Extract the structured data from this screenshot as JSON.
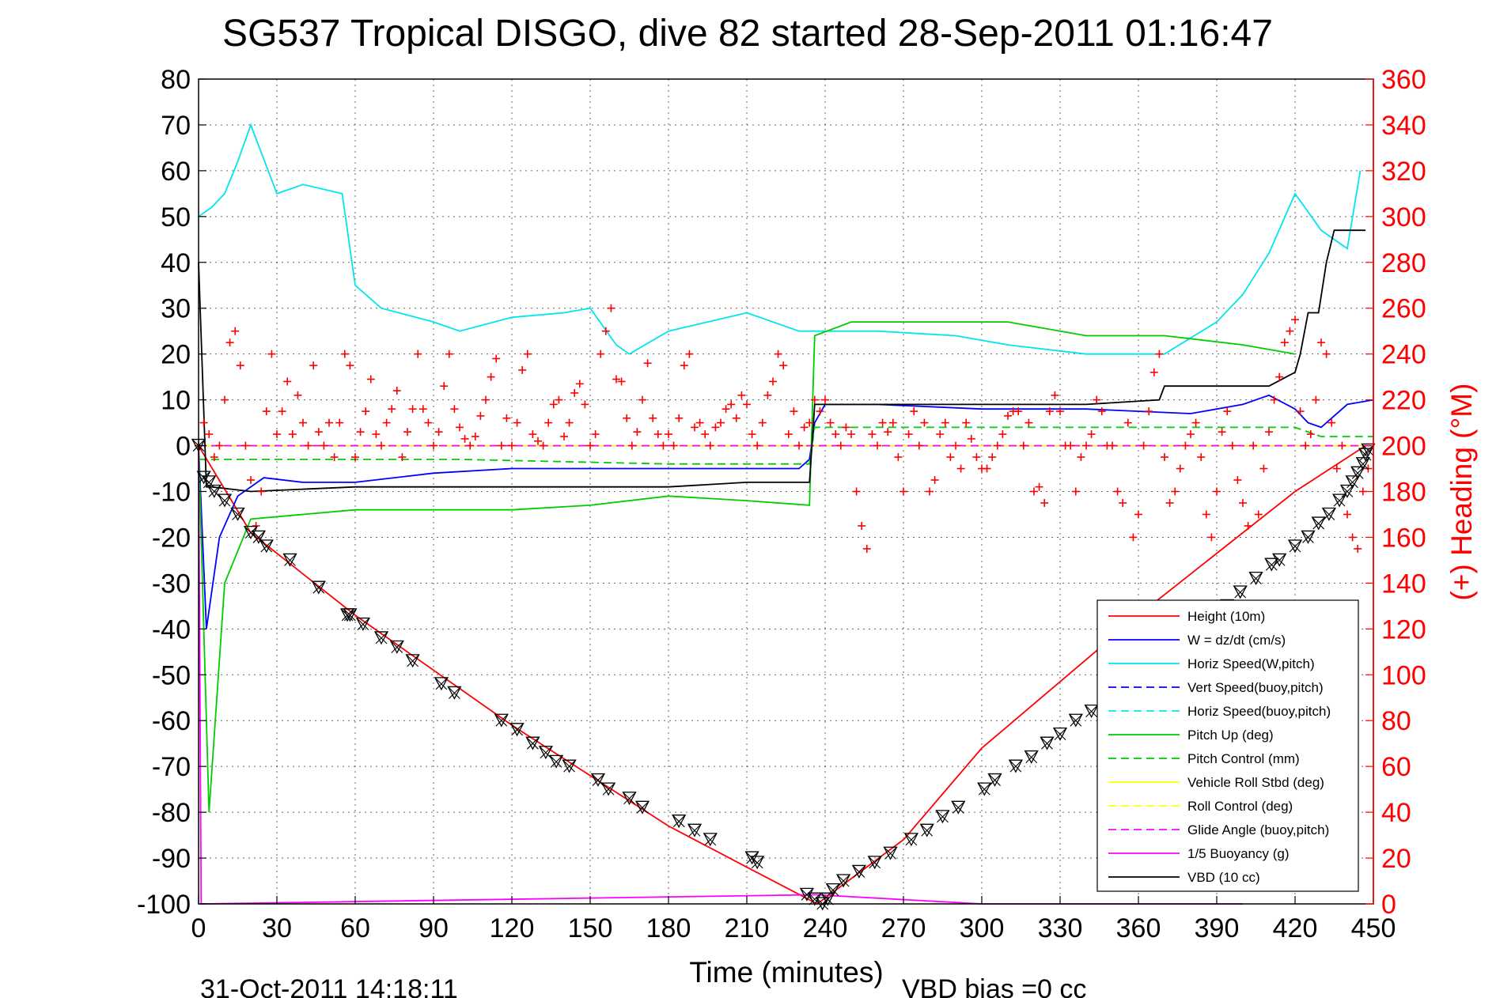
{
  "chart_data": {
    "type": "line",
    "title": "SG537 Tropical DISGO, dive 82 started 28-Sep-2011 01:16:47",
    "xlabel": "Time (minutes)",
    "ylabel_right": "(+) Heading (°M)",
    "xlim": [
      0,
      450
    ],
    "ylim": [
      -100,
      80
    ],
    "ylim_right": [
      0,
      360
    ],
    "x_ticks": [
      "0",
      "30",
      "60",
      "90",
      "120",
      "150",
      "180",
      "210",
      "240",
      "270",
      "300",
      "330",
      "360",
      "390",
      "420",
      "450"
    ],
    "y_ticks": [
      "80",
      "70",
      "60",
      "50",
      "40",
      "30",
      "20",
      "10",
      "0",
      "-10",
      "-20",
      "-30",
      "-40",
      "-50",
      "-60",
      "-70",
      "-80",
      "-90",
      "-100"
    ],
    "y_ticks_right": [
      "360",
      "340",
      "320",
      "300",
      "280",
      "260",
      "240",
      "220",
      "200",
      "180",
      "160",
      "140",
      "120",
      "100",
      "80",
      "60",
      "40",
      "20",
      "0"
    ],
    "grid": true,
    "legend_position": "bottom-right",
    "footer_date": "31-Oct-2011 14:18:11",
    "footer_note": "VBD bias =0 cc",
    "colors": {
      "height": "#ff0000",
      "w": "#0000ff",
      "horiz_speed": "#00e5ee",
      "pitch": "#00cc00",
      "roll": "#ffff00",
      "glide": "#ff00ff",
      "vbd": "#000000",
      "heading": "#ff0000",
      "right_axis": "#ff0000"
    },
    "series": [
      {
        "name": "Height (10m)",
        "style": "solid",
        "color": "#ff0000",
        "x": [
          0,
          20,
          60,
          120,
          180,
          210,
          237,
          270,
          300,
          360,
          420,
          447
        ],
        "y": [
          0,
          -19,
          -37,
          -61,
          -83,
          -92,
          -100,
          -86,
          -66,
          -37,
          -10,
          0
        ]
      },
      {
        "name": "W = dz/dt (cm/s)",
        "style": "solid",
        "color": "#0000ff",
        "x": [
          0,
          3,
          8,
          15,
          25,
          40,
          60,
          90,
          120,
          150,
          180,
          200,
          230,
          234,
          236,
          240,
          260,
          300,
          340,
          380,
          400,
          410,
          420,
          425,
          430,
          440,
          450
        ],
        "y": [
          0,
          -40,
          -20,
          -11,
          -7,
          -8,
          -8,
          -6,
          -5,
          -5,
          -5,
          -5,
          -5,
          -3,
          5,
          9,
          9,
          8,
          8,
          7,
          9,
          11,
          8,
          5,
          4,
          9,
          10
        ]
      },
      {
        "name": "Horiz Speed(W,pitch)",
        "style": "solid",
        "color": "#00e5ee",
        "x": [
          0,
          5,
          10,
          15,
          20,
          30,
          40,
          55,
          60,
          70,
          90,
          100,
          120,
          140,
          150,
          160,
          165,
          180,
          210,
          230,
          236,
          240,
          260,
          290,
          310,
          340,
          370,
          390,
          400,
          410,
          420,
          430,
          440,
          445
        ],
        "y": [
          50,
          52,
          55,
          62,
          70,
          55,
          57,
          55,
          35,
          30,
          27,
          25,
          28,
          29,
          30,
          22,
          20,
          25,
          29,
          25,
          25,
          25,
          25,
          24,
          22,
          20,
          20,
          27,
          33,
          42,
          55,
          47,
          43,
          60
        ]
      },
      {
        "name": "Vert Speed(buoy,pitch)",
        "style": "dashed",
        "color": "#0000ff",
        "x": [
          0,
          450
        ],
        "y": [
          0,
          0
        ]
      },
      {
        "name": "Horiz Speed(buoy,pitch)",
        "style": "dashed",
        "color": "#00e5ee",
        "x": [
          0,
          450
        ],
        "y": [
          0,
          0
        ]
      },
      {
        "name": "Pitch Up (deg)",
        "style": "solid",
        "color": "#00cc00",
        "x": [
          0,
          4,
          10,
          20,
          40,
          60,
          90,
          120,
          150,
          180,
          210,
          234,
          236,
          250,
          280,
          310,
          340,
          370,
          400,
          410,
          420
        ],
        "y": [
          0,
          -80,
          -30,
          -16,
          -15,
          -14,
          -14,
          -14,
          -13,
          -11,
          -12,
          -13,
          24,
          27,
          27,
          27,
          24,
          24,
          22,
          21,
          20
        ]
      },
      {
        "name": "Pitch Control (mm)",
        "style": "dashed",
        "color": "#00cc00",
        "x": [
          0,
          20,
          100,
          180,
          234,
          236,
          300,
          360,
          420,
          430,
          450
        ],
        "y": [
          -3,
          -3,
          -3,
          -4,
          -4,
          4,
          4,
          4,
          4,
          2,
          2
        ]
      },
      {
        "name": "Vehicle Roll Stbd (deg)",
        "style": "solid",
        "color": "#ffff00",
        "x": [
          0,
          20,
          60,
          120,
          180,
          234,
          236,
          300,
          360,
          420,
          450
        ],
        "y": [
          0,
          0,
          0,
          0,
          0,
          0,
          0,
          0,
          0,
          0,
          0
        ]
      },
      {
        "name": "Roll Control (deg)",
        "style": "dashed",
        "color": "#ffff00",
        "x": [
          0,
          450
        ],
        "y": [
          0,
          0
        ]
      },
      {
        "name": "Glide Angle (buoy,pitch)",
        "style": "dashed",
        "color": "#ff00ff",
        "x": [
          0,
          450
        ],
        "y": [
          0,
          0
        ]
      },
      {
        "name": "1/5 Buoyancy (g)",
        "style": "solid",
        "color": "#ff00ff",
        "x": [
          0,
          1,
          236,
          300,
          400
        ],
        "y": [
          0,
          -100,
          -98,
          -100,
          -100
        ]
      },
      {
        "name": "VBD (10 cc)",
        "style": "solid",
        "color": "#000000",
        "x": [
          0,
          3,
          5,
          20,
          60,
          80,
          100,
          120,
          150,
          180,
          210,
          234,
          236,
          240,
          280,
          300,
          340,
          368,
          370,
          390,
          410,
          420,
          422,
          425,
          429,
          432,
          435,
          447
        ],
        "y": [
          40,
          -9,
          -9,
          -10,
          -9,
          -9,
          -9,
          -9,
          -9,
          -9,
          -8,
          -8,
          9,
          9,
          9,
          9,
          9,
          10,
          13,
          13,
          13,
          16,
          20,
          29,
          29,
          40,
          47,
          47
        ]
      }
    ],
    "heading": {
      "axis": "right",
      "marker": "+",
      "color": "#ff0000",
      "x": [
        0,
        2,
        4,
        6,
        8,
        10,
        12,
        14,
        16,
        18,
        20,
        22,
        24,
        26,
        28,
        30,
        32,
        34,
        36,
        38,
        40,
        42,
        44,
        46,
        48,
        50,
        52,
        54,
        56,
        58,
        60,
        62,
        64,
        66,
        68,
        70,
        72,
        74,
        76,
        78,
        80,
        82,
        84,
        86,
        88,
        90,
        92,
        94,
        96,
        98,
        100,
        102,
        104,
        106,
        108,
        110,
        112,
        114,
        116,
        118,
        120,
        122,
        124,
        126,
        128,
        130,
        132,
        134,
        136,
        138,
        140,
        142,
        144,
        146,
        148,
        150,
        152,
        154,
        156,
        158,
        160,
        162,
        164,
        166,
        168,
        170,
        172,
        174,
        176,
        178,
        180,
        182,
        184,
        186,
        188,
        190,
        192,
        194,
        196,
        198,
        200,
        202,
        204,
        206,
        208,
        210,
        212,
        214,
        216,
        218,
        220,
        222,
        224,
        226,
        228,
        230,
        232,
        234,
        236,
        238,
        240,
        242,
        244,
        246,
        248,
        250,
        252,
        254,
        256,
        258,
        260,
        262,
        264,
        266,
        268,
        270,
        272,
        274,
        276,
        278,
        280,
        282,
        284,
        286,
        288,
        290,
        292,
        294,
        296,
        298,
        300,
        302,
        304,
        306,
        308,
        310,
        312,
        314,
        316,
        318,
        320,
        322,
        324,
        326,
        328,
        330,
        332,
        334,
        336,
        338,
        340,
        342,
        344,
        346,
        348,
        350,
        352,
        354,
        356,
        358,
        360,
        362,
        364,
        366,
        368,
        370,
        372,
        374,
        376,
        378,
        380,
        382,
        384,
        386,
        388,
        390,
        392,
        394,
        396,
        398,
        400,
        402,
        404,
        406,
        408,
        410,
        412,
        414,
        416,
        418,
        420,
        422,
        424,
        426,
        428,
        430,
        432,
        434,
        436,
        438,
        440,
        442,
        444,
        446,
        448
      ],
      "y": [
        200,
        210,
        205,
        195,
        200,
        220,
        245,
        250,
        235,
        200,
        185,
        165,
        180,
        215,
        240,
        205,
        215,
        228,
        205,
        222,
        210,
        200,
        235,
        206,
        200,
        210,
        195,
        210,
        240,
        235,
        195,
        206,
        215,
        229,
        205,
        200,
        210,
        216,
        224,
        195,
        206,
        216,
        240,
        216,
        210,
        200,
        206,
        226,
        240,
        216,
        208,
        203,
        200,
        204,
        213,
        220,
        230,
        238,
        200,
        212,
        200,
        210,
        233,
        240,
        205,
        202,
        200,
        210,
        218,
        220,
        204,
        210,
        223,
        227,
        218,
        200,
        205,
        240,
        250,
        260,
        229,
        228,
        212,
        200,
        206,
        220,
        236,
        212,
        205,
        200,
        205,
        200,
        212,
        235,
        240,
        208,
        210,
        205,
        200,
        208,
        210,
        216,
        218,
        212,
        222,
        218,
        205,
        200,
        210,
        222,
        228,
        240,
        235,
        205,
        215,
        200,
        208,
        210,
        220,
        215,
        220,
        210,
        205,
        200,
        208,
        205,
        180,
        165,
        155,
        205,
        200,
        210,
        206,
        210,
        195,
        180,
        205,
        215,
        200,
        210,
        180,
        185,
        205,
        210,
        195,
        200,
        190,
        210,
        203,
        195,
        190,
        190,
        195,
        200,
        205,
        213,
        215,
        215,
        200,
        210,
        180,
        182,
        175,
        215,
        222,
        215,
        200,
        200,
        180,
        195,
        200,
        205,
        220,
        215,
        200,
        200,
        180,
        175,
        210,
        160,
        170,
        200,
        215,
        232,
        240,
        195,
        175,
        180,
        190,
        200,
        205,
        210,
        195,
        170,
        160,
        180,
        206,
        215,
        200,
        185,
        175,
        165,
        200,
        170,
        190,
        206,
        220,
        230,
        245,
        250,
        255,
        215,
        200,
        205,
        220,
        245,
        240,
        210,
        190,
        200,
        170,
        160,
        155,
        180,
        190
      ]
    },
    "position_markers": {
      "symbols": [
        "triangle",
        "cross"
      ],
      "color": "#000000",
      "x": [
        0,
        2,
        4,
        6,
        10,
        15,
        20,
        23,
        26,
        35,
        46,
        57,
        58,
        63,
        70,
        76,
        82,
        93,
        98,
        116,
        122,
        128,
        133,
        137,
        142,
        153,
        157,
        165,
        170,
        184,
        190,
        196,
        212,
        214,
        233,
        236,
        239,
        241,
        243,
        247,
        253,
        259,
        265,
        273,
        279,
        285,
        291,
        301,
        305,
        313,
        319,
        325,
        330,
        336,
        342,
        348,
        353,
        359,
        365,
        371,
        377,
        383,
        388,
        394,
        399,
        405,
        411,
        414,
        420,
        425,
        429,
        433,
        437,
        440,
        442,
        444,
        446,
        447,
        448
      ],
      "y": [
        0,
        -7,
        -8,
        -10,
        -12,
        -15,
        -19,
        -20,
        -22,
        -25,
        -31,
        -37,
        -37,
        -39,
        -42,
        -44,
        -47,
        -52,
        -54,
        -60,
        -62,
        -65,
        -67,
        -69,
        -70,
        -73,
        -75,
        -77,
        -79,
        -82,
        -84,
        -86,
        -90,
        -91,
        -98,
        -99,
        -100,
        -99,
        -97,
        -95,
        -93,
        -91,
        -89,
        -86,
        -84,
        -81,
        -79,
        -75,
        -73,
        -70,
        -68,
        -65,
        -63,
        -60,
        -58,
        -55,
        -53,
        -50,
        -47,
        -45,
        -42,
        -40,
        -37,
        -35,
        -32,
        -29,
        -26,
        -25,
        -22,
        -20,
        -17,
        -15,
        -12,
        -10,
        -8,
        -6,
        -4,
        -2,
        -1
      ]
    },
    "legend": {
      "items": [
        {
          "label": "Height (10m)",
          "color": "#ff0000",
          "style": "solid"
        },
        {
          "label": "W = dz/dt (cm/s)",
          "color": "#0000ff",
          "style": "solid"
        },
        {
          "label": "Horiz Speed(W,pitch)",
          "color": "#00e5ee",
          "style": "solid"
        },
        {
          "label": "Vert Speed(buoy,pitch)",
          "color": "#0000ff",
          "style": "dashed"
        },
        {
          "label": "Horiz Speed(buoy,pitch)",
          "color": "#00e5ee",
          "style": "dashed"
        },
        {
          "label": "Pitch Up (deg)",
          "color": "#00cc00",
          "style": "solid"
        },
        {
          "label": "Pitch Control (mm)",
          "color": "#00cc00",
          "style": "dashed"
        },
        {
          "label": "Vehicle Roll Stbd (deg)",
          "color": "#ffff00",
          "style": "solid"
        },
        {
          "label": "Roll Control (deg)",
          "color": "#ffff00",
          "style": "dashed"
        },
        {
          "label": "Glide Angle (buoy,pitch)",
          "color": "#ff00ff",
          "style": "dashed"
        },
        {
          "label": "1/5 Buoyancy (g)",
          "color": "#ff00ff",
          "style": "solid"
        },
        {
          "label": "VBD (10 cc)",
          "color": "#000000",
          "style": "solid"
        }
      ]
    }
  }
}
